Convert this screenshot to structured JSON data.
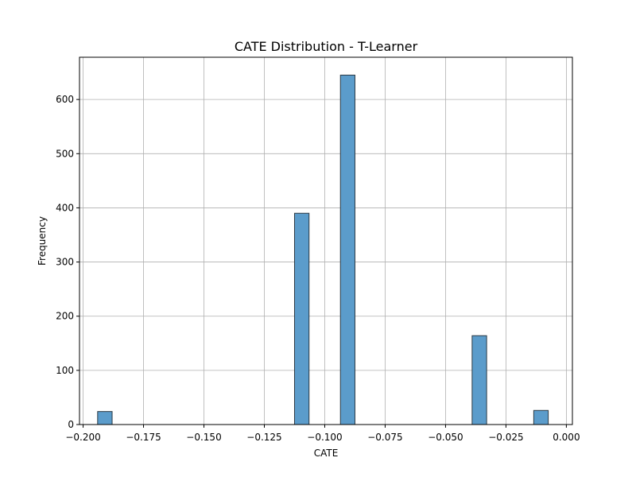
{
  "chart_data": {
    "type": "bar",
    "subtype": "histogram",
    "title": "CATE Distribution - T-Learner",
    "xlabel": "CATE",
    "ylabel": "Frequency",
    "xlim": [
      -0.2015,
      0.0025
    ],
    "ylim": [
      0,
      678
    ],
    "grid": true,
    "bar_color": "#5b9ccb",
    "edge_color": "#2b3a44",
    "bin_width": 0.006,
    "bins": [
      {
        "left": -0.194,
        "right": -0.188,
        "count": 24
      },
      {
        "left": -0.1125,
        "right": -0.1065,
        "count": 390
      },
      {
        "left": -0.0935,
        "right": -0.0875,
        "count": 645
      },
      {
        "left": -0.039,
        "right": -0.033,
        "count": 164
      },
      {
        "left": -0.0135,
        "right": -0.0075,
        "count": 26
      }
    ],
    "xticks": [
      -0.2,
      -0.175,
      -0.15,
      -0.125,
      -0.1,
      -0.075,
      -0.05,
      -0.025,
      0.0
    ],
    "xtick_labels": [
      "−0.200",
      "−0.175",
      "−0.150",
      "−0.125",
      "−0.100",
      "−0.075",
      "−0.050",
      "−0.025",
      "0.000"
    ],
    "yticks": [
      0,
      100,
      200,
      300,
      400,
      500,
      600
    ],
    "ytick_labels": [
      "0",
      "100",
      "200",
      "300",
      "400",
      "500",
      "600"
    ]
  }
}
